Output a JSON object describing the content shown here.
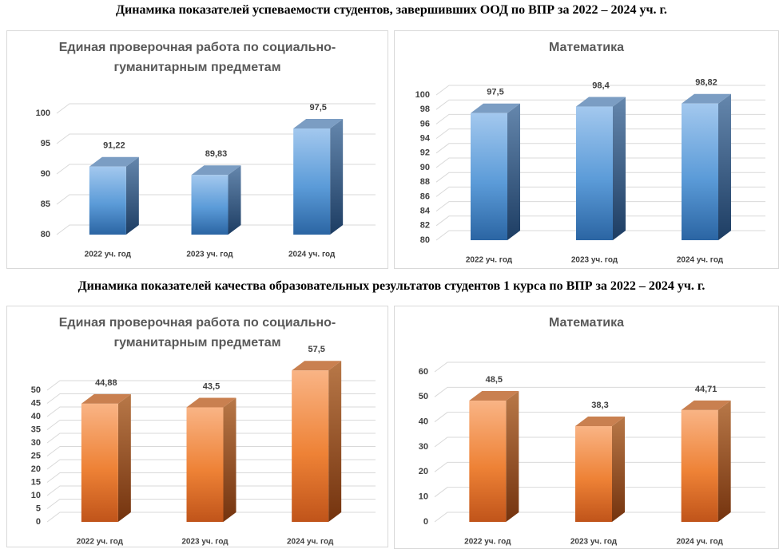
{
  "headings": [
    "Динамика показателей успеваемости студентов, завершивших ООД по ВПР за 2022 – 2024 уч. г.",
    "Динамика показателей качества образовательных результатов студентов 1 курса по ВПР за 2022 – 2024 уч. г."
  ],
  "chart_data": [
    {
      "type": "bar",
      "title": "Единая проверочная работа по социально-гуманитарным предметам",
      "categories": [
        "2022 уч. год",
        "2023 уч. год",
        "2024 уч. год"
      ],
      "values": [
        91.22,
        89.83,
        97.5
      ],
      "value_labels": [
        "91,22",
        "89,83",
        "97,5"
      ],
      "color": "blue",
      "ylim": [
        80,
        100
      ],
      "yticks": [
        80,
        85,
        90,
        95,
        100
      ],
      "grid": true
    },
    {
      "type": "bar",
      "title": "Математика",
      "categories": [
        "2022 уч. год",
        "2023 уч. год",
        "2024 уч. год"
      ],
      "values": [
        97.5,
        98.4,
        98.82
      ],
      "value_labels": [
        "97,5",
        "98,4",
        "98,82"
      ],
      "color": "blue",
      "ylim": [
        80,
        100
      ],
      "yticks": [
        80,
        82,
        84,
        86,
        88,
        90,
        92,
        94,
        96,
        98,
        100
      ],
      "grid": true
    },
    {
      "type": "bar",
      "title": "Единая проверочная работа по социально-гуманитарным предметам",
      "categories": [
        "2022 уч. год",
        "2023 уч. год",
        "2024 уч. год"
      ],
      "values": [
        44.88,
        43.5,
        57.5
      ],
      "value_labels": [
        "44,88",
        "43,5",
        "57,5"
      ],
      "color": "orange",
      "ylim": [
        0,
        60
      ],
      "yticks": [
        0,
        5,
        10,
        15,
        20,
        25,
        30,
        35,
        40,
        45,
        50
      ],
      "grid": true
    },
    {
      "type": "bar",
      "title": "Математика",
      "categories": [
        "2022 уч. год",
        "2023 уч. год",
        "2024 уч. год"
      ],
      "values": [
        48.5,
        38.3,
        44.71
      ],
      "value_labels": [
        "48,5",
        "38,3",
        "44,71"
      ],
      "color": "orange",
      "ylim": [
        0,
        60
      ],
      "yticks": [
        0,
        10,
        20,
        30,
        40,
        50,
        60
      ],
      "grid": true
    }
  ]
}
